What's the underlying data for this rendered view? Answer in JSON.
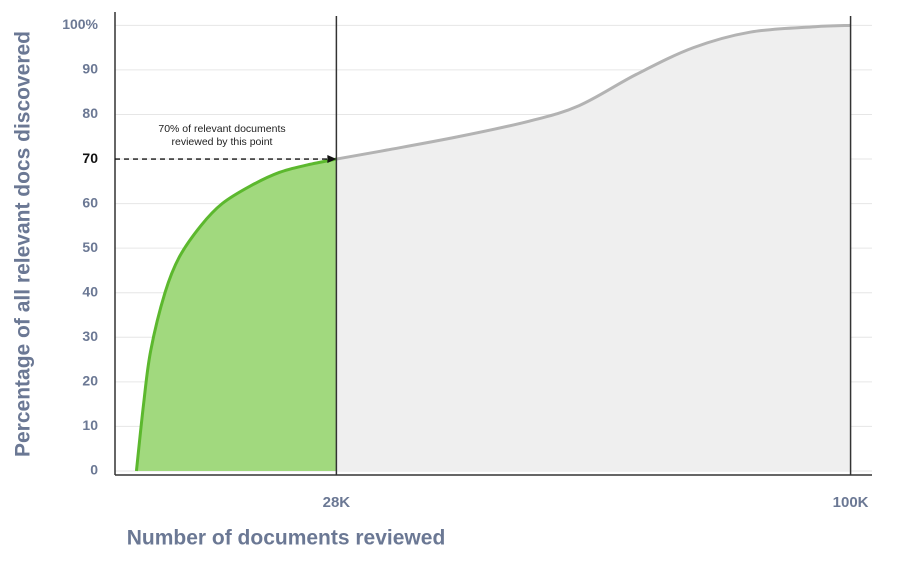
{
  "chart_data": {
    "type": "area",
    "x_label": "Number of documents reviewed",
    "y_label": "Percentage of all relevant docs discovered",
    "xlim": [
      -3000,
      103000
    ],
    "xticks": [
      {
        "value": 28000,
        "label": "28K"
      },
      {
        "value": 100000,
        "label": "100K"
      }
    ],
    "ylim": [
      0,
      103
    ],
    "yticks": [
      0,
      10,
      20,
      30,
      40,
      50,
      60,
      70,
      80,
      90,
      {
        "value": 100,
        "label": "100%"
      }
    ],
    "highlight_ytick": 70,
    "grid": true,
    "series": [
      {
        "color": "#5cb82e",
        "fill": "#a1d97e",
        "x": [
          0,
          1000,
          2000,
          4000,
          6000,
          9000,
          12000,
          16000,
          20000,
          24000,
          28000
        ],
        "values": [
          0,
          15,
          27,
          40,
          48,
          55,
          60,
          64,
          67,
          68.7,
          70
        ]
      },
      {
        "color": "#b3b3b3",
        "fill": "#efefef",
        "x": [
          28000,
          35000,
          45000,
          55000,
          62000,
          70000,
          78000,
          86000,
          95000,
          100000
        ],
        "values": [
          70,
          72,
          75,
          78.5,
          82,
          89,
          95,
          98.5,
          99.7,
          100
        ]
      }
    ],
    "annotation": {
      "lines": [
        "70% of relevant documents",
        "reviewed by this point"
      ],
      "x": 28000,
      "y": 70
    }
  }
}
